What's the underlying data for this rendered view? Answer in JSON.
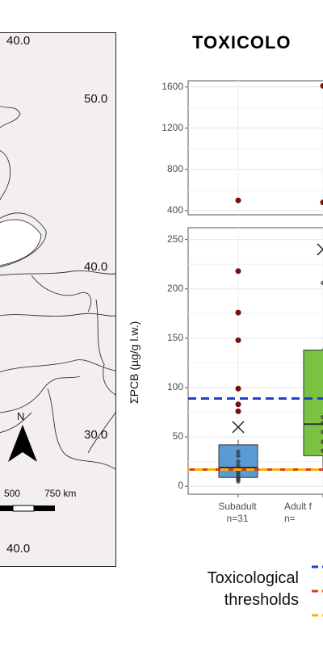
{
  "title": "TOXICOLO",
  "map": {
    "lat_labels": [
      "40.0",
      "50.0",
      "40.0",
      "30.0",
      "40.0"
    ],
    "north_label": "N",
    "scale_labels": [
      "500",
      "750 km"
    ],
    "background_color": "#f2efee"
  },
  "chart_data": [
    {
      "type": "scatter",
      "panel": "top",
      "ylim": [
        360,
        1660
      ],
      "y_ticks": [
        "1600",
        "1200",
        "800",
        "400"
      ],
      "points": [
        {
          "category": "Subadult",
          "value": 500
        },
        {
          "category": "Adult",
          "value": 480
        },
        {
          "category": "Adult",
          "value": 1610
        }
      ]
    },
    {
      "type": "box",
      "panel": "bottom",
      "ylabel": "ΣPCB (µg/g l.w.)",
      "ylim": [
        -8,
        262
      ],
      "y_ticks": [
        "250",
        "200",
        "150",
        "100",
        "50",
        "0"
      ],
      "categories": [
        "Subadult\nn=31",
        "Adult f\nn="
      ],
      "series": [
        {
          "category": "Subadult",
          "color": "#5b9bd5",
          "q1": 9,
          "median": 19,
          "q3": 42,
          "whisker_low": 4,
          "whisker_high": 47,
          "mean": 60,
          "outliers": [
            218,
            176,
            148,
            99,
            83,
            76
          ],
          "inliers": [
            35,
            31,
            25,
            21,
            18,
            15,
            12,
            9,
            7,
            5
          ]
        },
        {
          "category": "Adult",
          "color": "#7cc242",
          "q1": 31,
          "median": 63,
          "q3": 138,
          "whisker_low": 17,
          "whisker_high": 140,
          "mean": 240,
          "outliers": [],
          "inliers": [
            206,
            70,
            64,
            55,
            45,
            36
          ]
        }
      ],
      "thresholds": [
        {
          "value": 89,
          "color": "#1f3fd6"
        },
        {
          "value": 17,
          "color": "#e23b1a"
        },
        {
          "value": 17,
          "color": "#f4b400"
        }
      ],
      "outlier_color": "#7b0f0f"
    }
  ],
  "legend": {
    "title_line1": "Toxicological",
    "title_line2": "thresholds"
  }
}
